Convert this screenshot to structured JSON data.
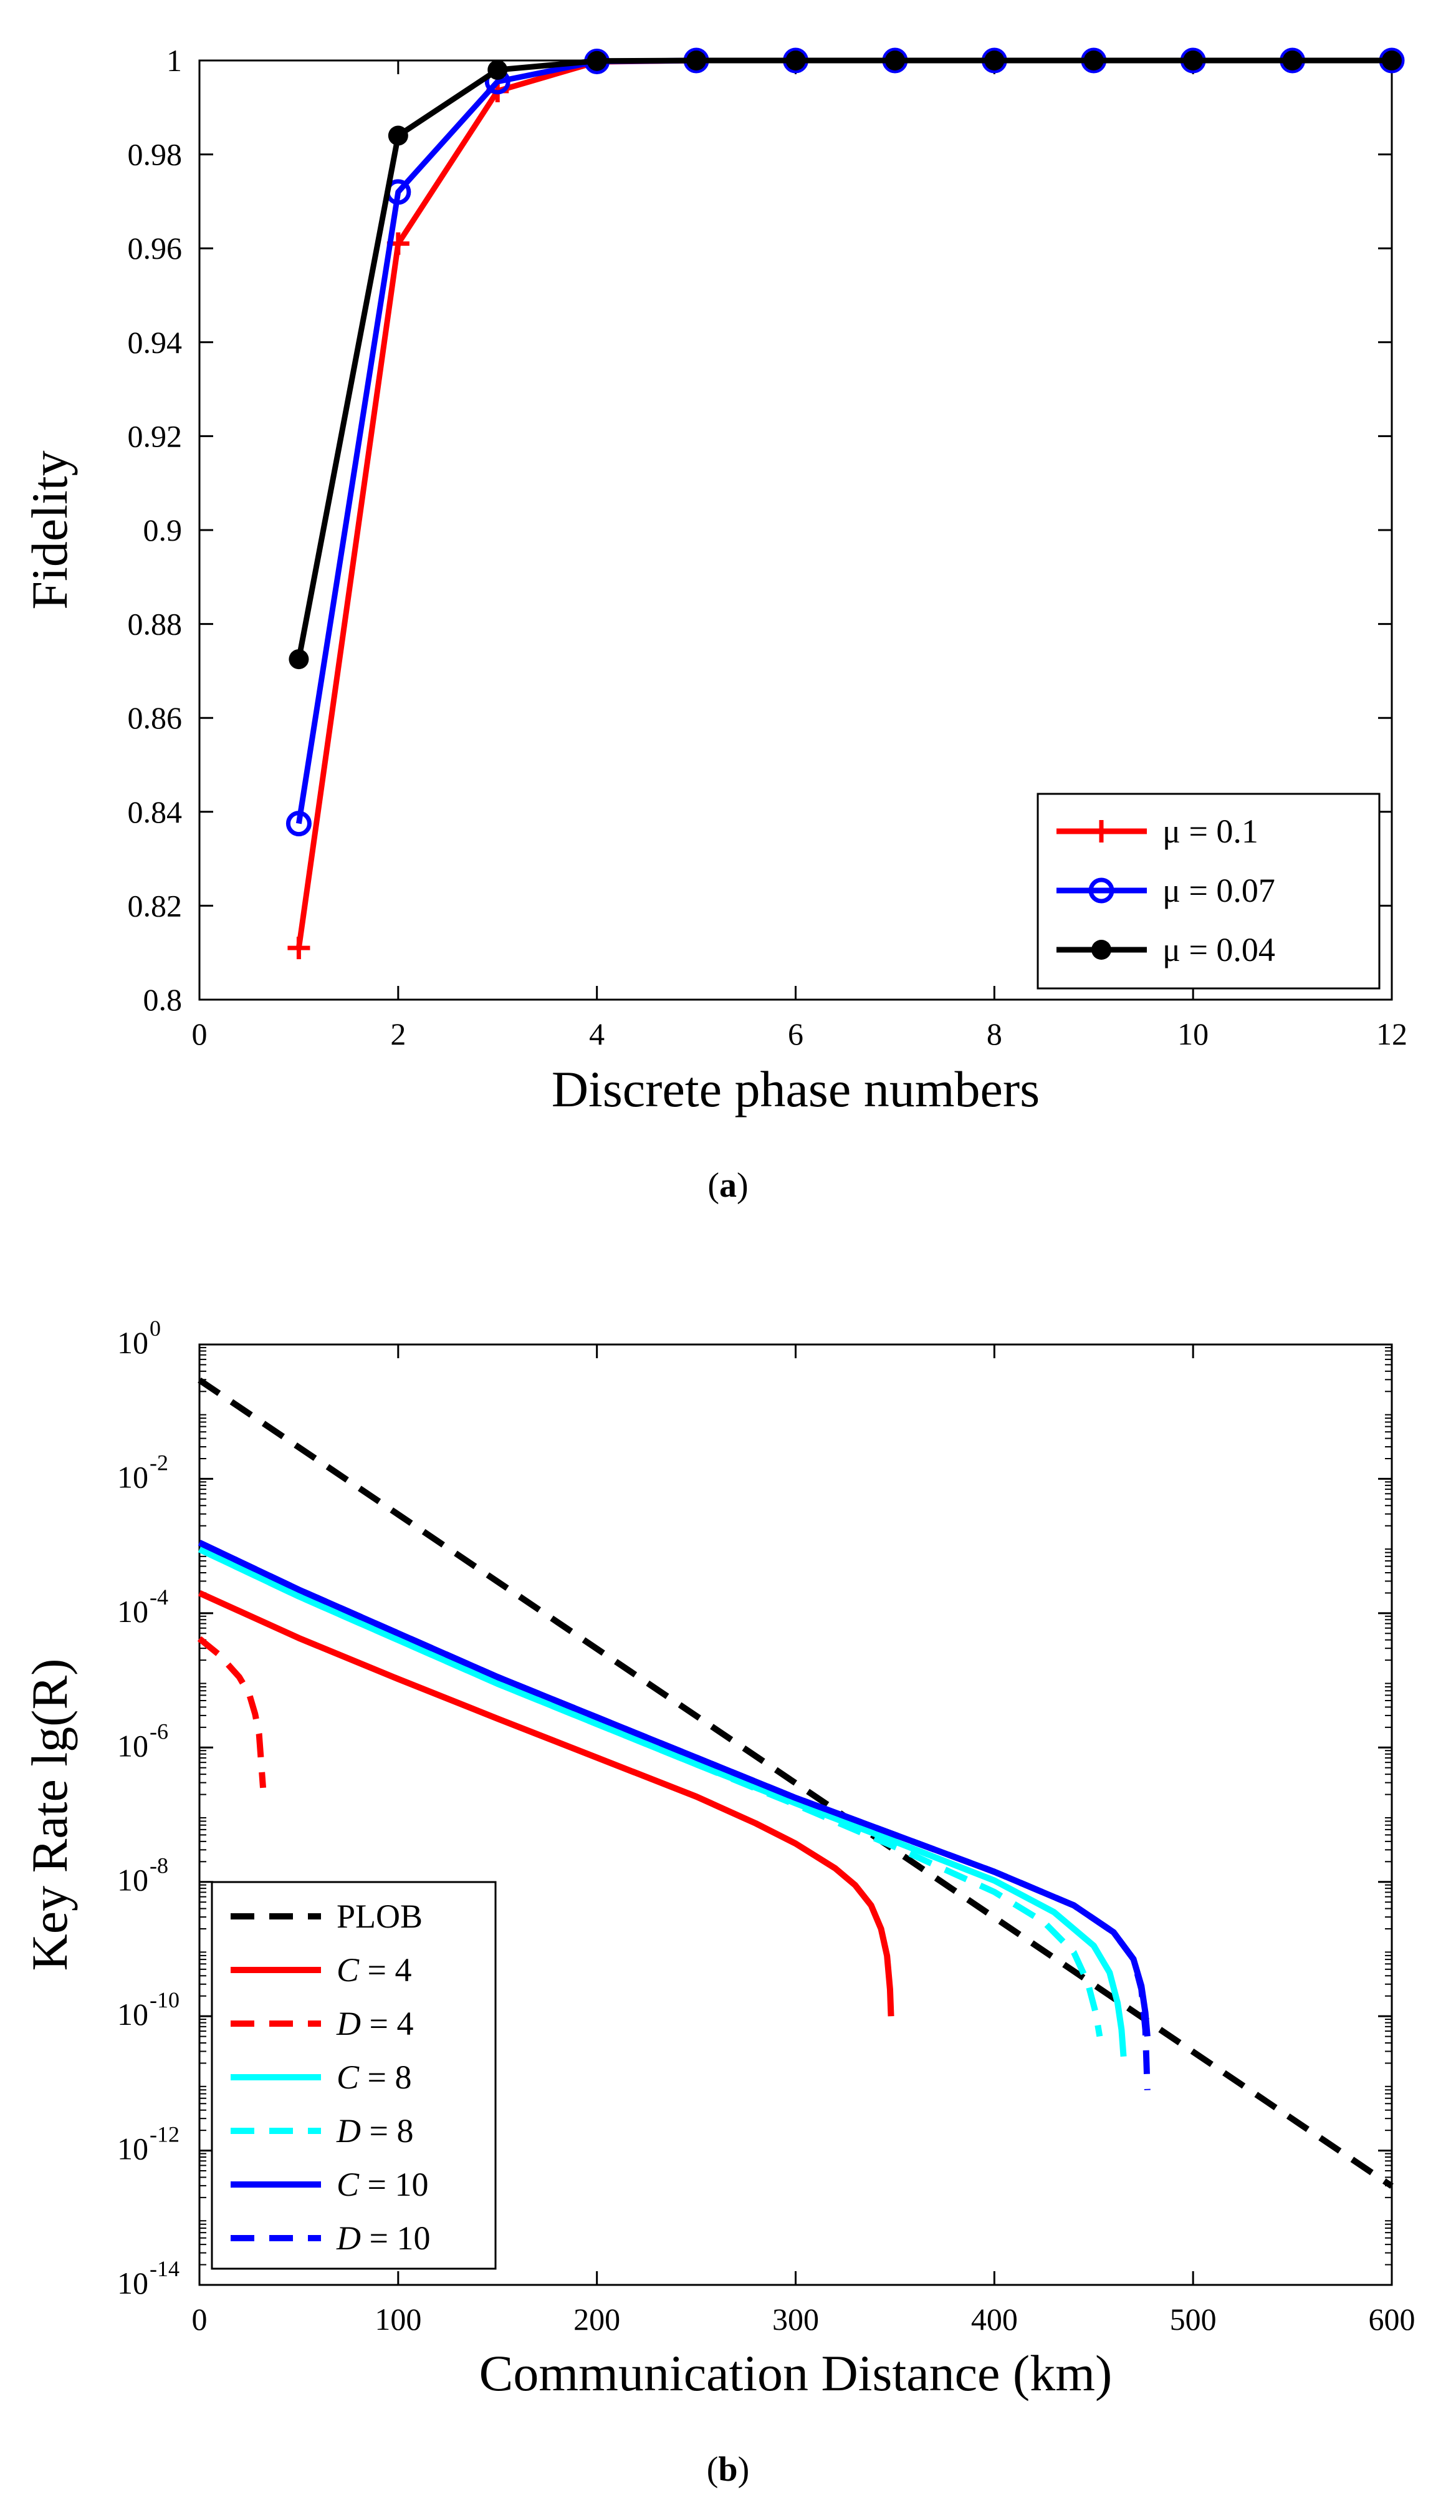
{
  "figure": {
    "caption_a": "a",
    "caption_b": "b"
  },
  "colors": {
    "red": "#ff0000",
    "blue": "#0000ff",
    "black": "#000000",
    "cyan": "#00ffff"
  },
  "chart_data": [
    {
      "type": "line",
      "caption": "a",
      "xlabel": "Discrete phase numbers",
      "ylabel": "Fidelity",
      "xlim": [
        0,
        12
      ],
      "ylim": [
        0.8,
        1
      ],
      "xticks": [
        "0",
        "2",
        "4",
        "6",
        "8",
        "10",
        "12"
      ],
      "yticks": [
        "0.8",
        "0.82",
        "0.84",
        "0.86",
        "0.88",
        "0.9",
        "0.92",
        "0.94",
        "0.96",
        "0.98",
        "1"
      ],
      "legend_position": "bottom-right",
      "x": [
        1,
        2,
        3,
        4,
        5,
        6,
        7,
        8,
        9,
        10,
        11,
        12
      ],
      "series": [
        {
          "name": "μ = 0.1",
          "color": "#ff0000",
          "marker": "plus",
          "values": [
            0.811,
            0.961,
            0.9935,
            0.9997,
            1,
            1,
            1,
            1,
            1,
            1,
            1,
            1
          ]
        },
        {
          "name": "μ = 0.07",
          "color": "#0000ff",
          "marker": "circle",
          "values": [
            0.8375,
            0.972,
            0.9955,
            0.9998,
            1,
            1,
            1,
            1,
            1,
            1,
            1,
            1
          ]
        },
        {
          "name": "μ = 0.04",
          "color": "#000000",
          "marker": "dot",
          "values": [
            0.8725,
            0.984,
            0.998,
            0.9999,
            1,
            1,
            1,
            1,
            1,
            1,
            1,
            1
          ]
        }
      ]
    },
    {
      "type": "line",
      "caption": "b",
      "xlabel": "Communication Distance (km)",
      "ylabel": "Key Rate lg(R)",
      "xlim": [
        0,
        600
      ],
      "ylim_log10": [
        -14,
        0
      ],
      "xticks": [
        "0",
        "100",
        "200",
        "300",
        "400",
        "500",
        "600"
      ],
      "yticks": [
        {
          "base": "10",
          "exp": "0",
          "log": 0
        },
        {
          "base": "10",
          "exp": "-2",
          "log": -2
        },
        {
          "base": "10",
          "exp": "-4",
          "log": -4
        },
        {
          "base": "10",
          "exp": "-6",
          "log": -6
        },
        {
          "base": "10",
          "exp": "-8",
          "log": -8
        },
        {
          "base": "10",
          "exp": "-10",
          "log": -10
        },
        {
          "base": "10",
          "exp": "-12",
          "log": -12
        },
        {
          "base": "10",
          "exp": "-14",
          "log": -14
        }
      ],
      "legend_position": "bottom-left",
      "series": [
        {
          "name": "PLOB",
          "var": "",
          "val": "",
          "color": "#000000",
          "dash": true,
          "x": [
            0,
            600
          ],
          "log10_y": [
            -0.53,
            -12.53
          ]
        },
        {
          "name": "C = 4",
          "var": "C",
          "val": " = 4",
          "color": "#ff0000",
          "dash": false,
          "x": [
            0,
            50,
            100,
            150,
            200,
            250,
            280,
            300,
            320,
            330,
            338,
            343,
            346,
            347.5,
            348
          ],
          "log10_y": [
            -3.7,
            -4.37,
            -4.98,
            -5.57,
            -6.15,
            -6.73,
            -7.13,
            -7.43,
            -7.8,
            -8.05,
            -8.35,
            -8.7,
            -9.1,
            -9.6,
            -10.0
          ]
        },
        {
          "name": "D = 4",
          "var": "D",
          "val": " = 4",
          "color": "#ff0000",
          "dash": true,
          "x": [
            0,
            10,
            20,
            25,
            28,
            30,
            31,
            32
          ],
          "log10_y": [
            -4.38,
            -4.62,
            -4.95,
            -5.2,
            -5.5,
            -5.8,
            -6.2,
            -6.6
          ]
        },
        {
          "name": "C = 8",
          "var": "C",
          "val": " = 8",
          "color": "#00ffff",
          "dash": false,
          "x": [
            0,
            50,
            100,
            150,
            200,
            250,
            300,
            350,
            400,
            430,
            450,
            458,
            462,
            464,
            465
          ],
          "log10_y": [
            -3.05,
            -3.75,
            -4.4,
            -5.05,
            -5.65,
            -6.25,
            -6.83,
            -7.4,
            -7.98,
            -8.45,
            -8.95,
            -9.35,
            -9.8,
            -10.2,
            -10.6
          ]
        },
        {
          "name": "D = 8",
          "var": "D",
          "val": " = 8",
          "color": "#00ffff",
          "dash": true,
          "x": [
            0,
            50,
            100,
            150,
            200,
            250,
            300,
            350,
            400,
            425,
            440,
            447,
            451,
            453
          ],
          "log10_y": [
            -3.05,
            -3.75,
            -4.4,
            -5.05,
            -5.65,
            -6.25,
            -6.85,
            -7.48,
            -8.15,
            -8.6,
            -9.05,
            -9.5,
            -9.95,
            -10.3
          ]
        },
        {
          "name": "C = 10",
          "var": "C",
          "val": " = 10",
          "color": "#0000ff",
          "dash": false,
          "x": [
            0,
            50,
            100,
            150,
            200,
            250,
            300,
            350,
            400,
            440,
            460,
            470,
            474,
            476,
            477
          ],
          "log10_y": [
            -2.95,
            -3.65,
            -4.3,
            -4.95,
            -5.55,
            -6.15,
            -6.75,
            -7.3,
            -7.85,
            -8.35,
            -8.75,
            -9.15,
            -9.55,
            -9.95,
            -10.3
          ]
        },
        {
          "name": "D = 10",
          "var": "D",
          "val": " = 10",
          "color": "#0000ff",
          "dash": true,
          "x": [
            0,
            50,
            100,
            150,
            200,
            250,
            300,
            350,
            400,
            440,
            460,
            470,
            474,
            476,
            477
          ],
          "log10_y": [
            -2.95,
            -3.65,
            -4.3,
            -4.95,
            -5.55,
            -6.15,
            -6.75,
            -7.3,
            -7.85,
            -8.35,
            -8.75,
            -9.15,
            -9.6,
            -10.2,
            -11.1
          ]
        }
      ]
    }
  ]
}
